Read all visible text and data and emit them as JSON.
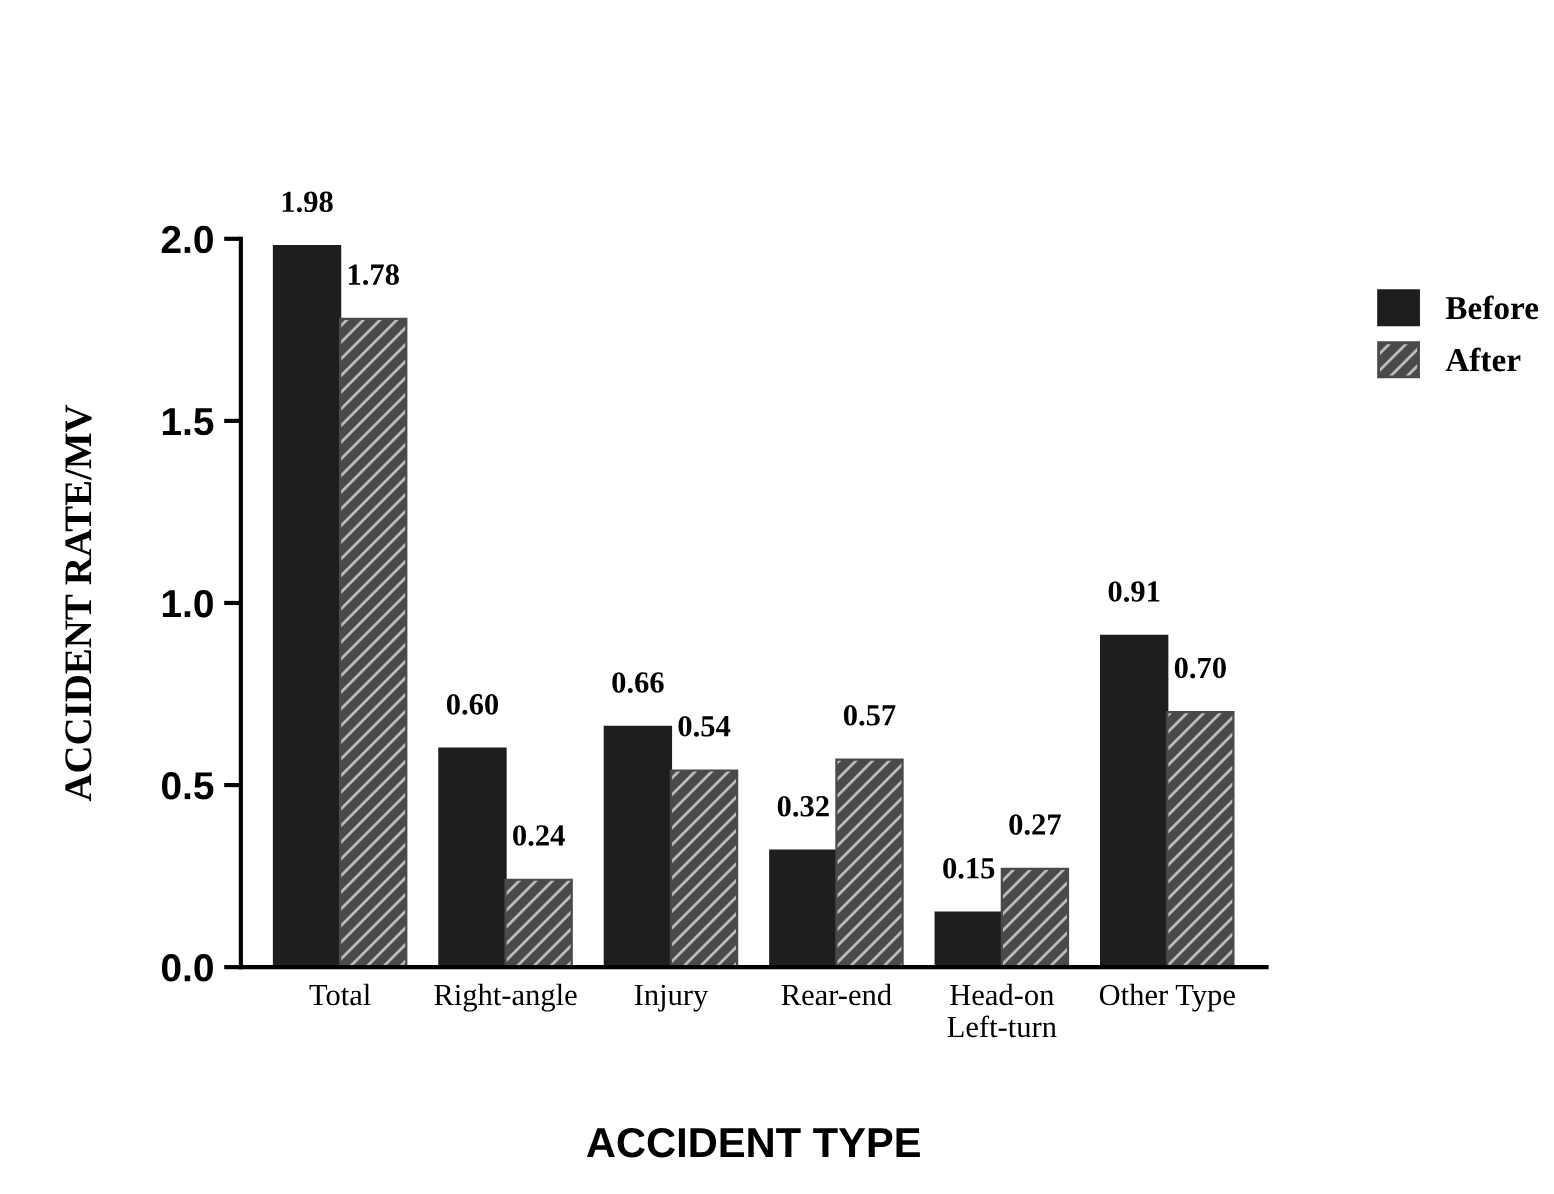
{
  "chart_data": {
    "type": "bar",
    "xlabel": "ACCIDENT TYPE",
    "ylabel": "ACCIDENT RATE/MV",
    "categories": [
      "Total",
      "Right-angle",
      "Injury",
      "Rear-end",
      "Head-on\nLeft-turn",
      "Other Type"
    ],
    "series": [
      {
        "name": "Before",
        "color": "#1e1e1e",
        "values": [
          1.98,
          0.6,
          0.66,
          0.32,
          0.15,
          0.91
        ],
        "value_labels": [
          "1.98",
          "0.60",
          "0.66",
          "0.32",
          "0.15",
          "0.91"
        ]
      },
      {
        "name": "After",
        "color": "#4a4a4a",
        "values": [
          1.78,
          0.24,
          0.54,
          0.57,
          0.27,
          0.7
        ],
        "value_labels": [
          "1.78",
          "0.24",
          "0.54",
          "0.57",
          "0.27",
          "0.70"
        ]
      }
    ],
    "ylim": [
      0,
      2.0
    ],
    "yticks": [
      {
        "value": 0,
        "label": "0.0"
      },
      {
        "value": 0.5,
        "label": "0.5"
      },
      {
        "value": 1.0,
        "label": "1.0"
      },
      {
        "value": 1.5,
        "label": "1.5"
      },
      {
        "value": 2.0,
        "label": "2.0"
      }
    ],
    "legend": "top right",
    "grid": false
  }
}
